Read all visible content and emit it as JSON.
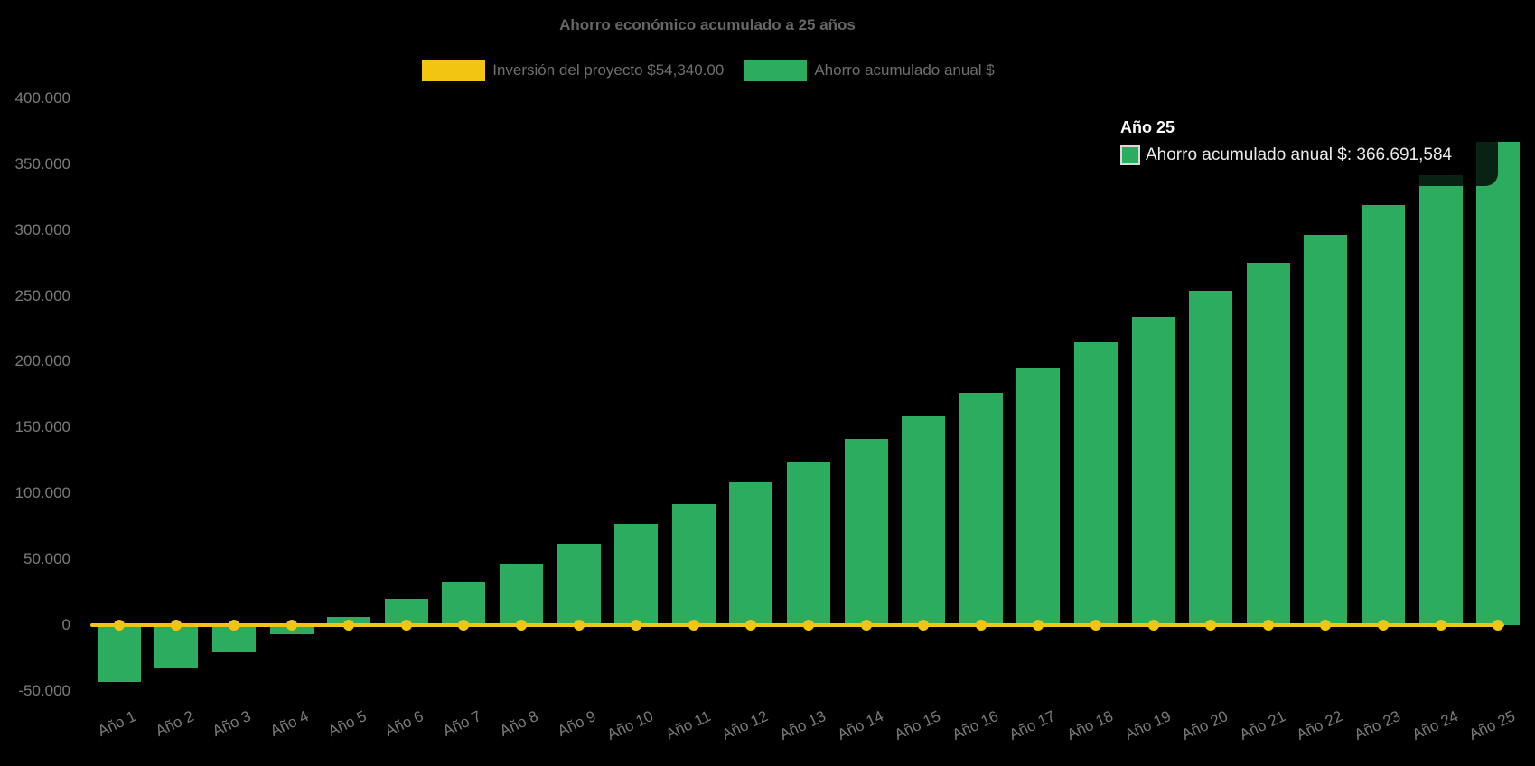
{
  "page": {
    "background": "#000000"
  },
  "colors": {
    "investment_yellow": "#F2C512",
    "savings_green": "#2BAC5E",
    "title_text": "#666666",
    "legend_text": "#6f6f6f",
    "tick_text": "#7b7b7b",
    "tooltip_title_text": "#ffffff",
    "tooltip_body_text": "#ebebeb",
    "tooltip_swatch_border": "#d9d9d9",
    "tooltip_background": "rgba(0,0,0,0.8)"
  },
  "chart_data": {
    "type": "bar",
    "title": "Ahorro económico acumulado a 25 años",
    "background": "#000000",
    "grid": false,
    "legend_position": "top",
    "categories": [
      "Año 1",
      "Año 2",
      "Año 3",
      "Año 4",
      "Año 5",
      "Año 6",
      "Año 7",
      "Año 8",
      "Año 9",
      "Año 10",
      "Año 11",
      "Año 12",
      "Año 13",
      "Año 14",
      "Año 15",
      "Año 16",
      "Año 17",
      "Año 18",
      "Año 19",
      "Año 20",
      "Año 21",
      "Año 22",
      "Año 23",
      "Año 24",
      "Año 25"
    ],
    "series": [
      {
        "name": "Inversión del proyecto $54,340.00",
        "type": "line",
        "color": "#F2C512",
        "point_style": "circle",
        "values": [
          0,
          0,
          0,
          0,
          0,
          0,
          0,
          0,
          0,
          0,
          0,
          0,
          0,
          0,
          0,
          0,
          0,
          0,
          0,
          0,
          0,
          0,
          0,
          0,
          0
        ]
      },
      {
        "name": "Ahorro acumulado anual $",
        "type": "bar",
        "color": "#2BAC5E",
        "values": [
          -43500,
          -32600,
          -20600,
          -6900,
          6400,
          19800,
          33200,
          46800,
          61600,
          76800,
          92200,
          108300,
          124400,
          141200,
          158200,
          176500,
          195200,
          214500,
          233700,
          253700,
          275000,
          296200,
          318600,
          341500,
          366691.584
        ]
      }
    ],
    "y_axis": {
      "min": -50000,
      "max": 400000,
      "step": 50000,
      "tick_labels": [
        "400.000",
        "350.000",
        "300.000",
        "250.000",
        "200.000",
        "150.000",
        "100.000",
        "50.000",
        "0",
        "-50.000"
      ]
    },
    "x_axis": {
      "tick_rotation_deg": -25
    },
    "tooltip": {
      "title": "Año 25",
      "series_label": "Ahorro acumulado anual $",
      "value_label": "366.691,584",
      "text": "Ahorro acumulado anual $: 366.691,584",
      "swatch_color": "#2BAC5E"
    }
  }
}
